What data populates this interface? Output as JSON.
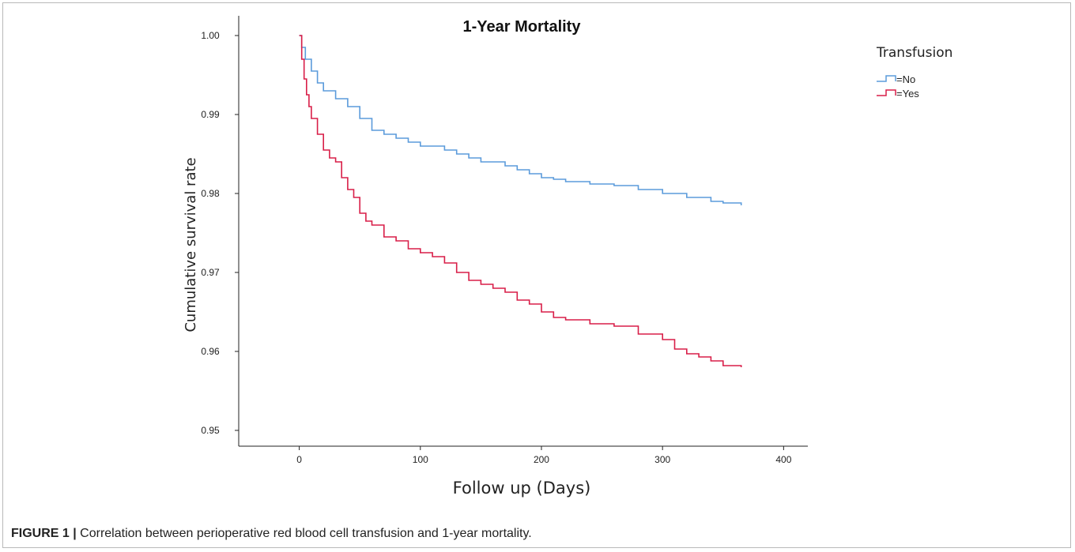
{
  "figure": {
    "caption_label": "FIGURE 1 |",
    "caption_text": "Correlation between perioperative red blood cell transfusion and 1-year mortality."
  },
  "chart_data": {
    "type": "line",
    "title": "1-Year Mortality",
    "xlabel": "Follow up (Days)",
    "ylabel": "Cumulative survival rate",
    "xlim": [
      -50,
      420
    ],
    "ylim": [
      0.948,
      1.0025
    ],
    "x_ticks": [
      0,
      100,
      200,
      300,
      400
    ],
    "y_ticks": [
      0.95,
      0.96,
      0.97,
      0.98,
      0.99,
      1.0
    ],
    "y_tick_labels": [
      "0.95",
      "0.96",
      "0.97",
      "0.98",
      "0.99",
      "1.00"
    ],
    "grid": false,
    "step": true,
    "legend": {
      "title": "Transfusion",
      "position": "top-right"
    },
    "series": [
      {
        "name": "=No",
        "color": "#5b9bdb",
        "x": [
          0,
          2,
          5,
          10,
          15,
          20,
          30,
          40,
          50,
          60,
          70,
          80,
          90,
          100,
          110,
          120,
          130,
          140,
          150,
          160,
          170,
          180,
          190,
          200,
          210,
          220,
          240,
          260,
          280,
          300,
          320,
          340,
          350,
          365
        ],
        "y": [
          1.0,
          0.9985,
          0.997,
          0.9955,
          0.994,
          0.993,
          0.992,
          0.991,
          0.9895,
          0.988,
          0.9875,
          0.987,
          0.9865,
          0.986,
          0.986,
          0.9855,
          0.985,
          0.9845,
          0.984,
          0.984,
          0.9835,
          0.983,
          0.9825,
          0.982,
          0.9818,
          0.9815,
          0.9812,
          0.981,
          0.9805,
          0.98,
          0.9795,
          0.979,
          0.9788,
          0.9785
        ]
      },
      {
        "name": "=Yes",
        "color": "#d81e48",
        "x": [
          0,
          2,
          4,
          6,
          8,
          10,
          15,
          20,
          25,
          30,
          35,
          40,
          45,
          50,
          55,
          60,
          70,
          80,
          90,
          100,
          110,
          120,
          130,
          140,
          150,
          160,
          170,
          180,
          190,
          200,
          210,
          220,
          240,
          260,
          280,
          300,
          310,
          320,
          330,
          340,
          350,
          365
        ],
        "y": [
          1.0,
          0.997,
          0.9945,
          0.9925,
          0.991,
          0.9895,
          0.9875,
          0.9855,
          0.9845,
          0.984,
          0.982,
          0.9805,
          0.9795,
          0.9775,
          0.9765,
          0.976,
          0.9745,
          0.974,
          0.973,
          0.9725,
          0.972,
          0.9712,
          0.97,
          0.969,
          0.9685,
          0.968,
          0.9675,
          0.9665,
          0.966,
          0.965,
          0.9643,
          0.964,
          0.9635,
          0.9632,
          0.9622,
          0.9615,
          0.9603,
          0.9597,
          0.9593,
          0.9588,
          0.9582,
          0.958
        ]
      }
    ]
  }
}
